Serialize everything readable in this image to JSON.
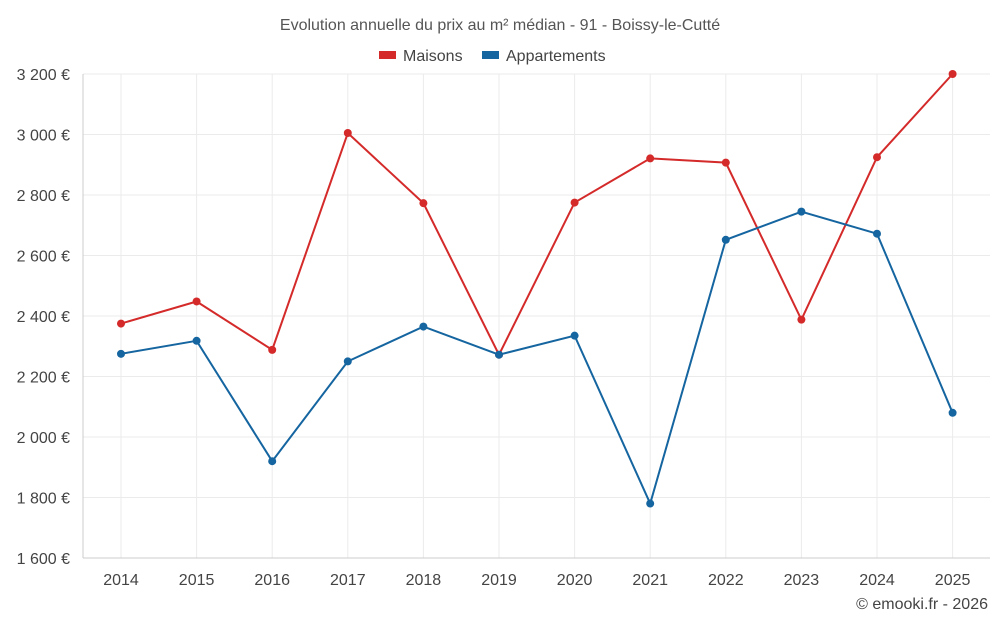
{
  "chart_data": {
    "type": "line",
    "title": "Evolution annuelle du prix au m² médian - 91 - Boissy-le-Cutté",
    "categories": [
      "2014",
      "2015",
      "2016",
      "2017",
      "2018",
      "2019",
      "2020",
      "2021",
      "2022",
      "2023",
      "2024",
      "2025"
    ],
    "series": [
      {
        "name": "Maisons",
        "color": "#d42a2a",
        "values": [
          2375,
          2448,
          2288,
          3005,
          2773,
          2272,
          2775,
          2921,
          2907,
          2388,
          2925,
          3200
        ]
      },
      {
        "name": "Appartements",
        "color": "#1565a0",
        "values": [
          2275,
          2318,
          1920,
          2250,
          2365,
          2272,
          2335,
          1780,
          2652,
          2745,
          2672,
          2080
        ]
      }
    ],
    "ylim": [
      1600,
      3200
    ],
    "yticks": [
      1600,
      1800,
      2000,
      2200,
      2400,
      2600,
      2800,
      3000,
      3200
    ],
    "ytick_labels": [
      "1 600 €",
      "1 800 €",
      "2 000 €",
      "2 200 €",
      "2 400 €",
      "2 600 €",
      "2 800 €",
      "3 000 €",
      "3 200 €"
    ],
    "xlabel": "",
    "ylabel": "",
    "grid": true,
    "legend_position": "top-center"
  },
  "credit": "© emooki.fr - 2026"
}
